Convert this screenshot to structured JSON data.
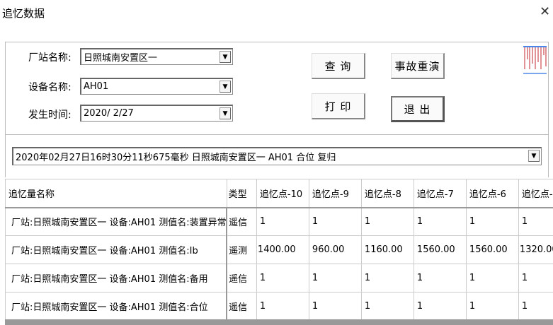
{
  "window": {
    "title": "追忆数据",
    "close_icon": "close-icon"
  },
  "form": {
    "station_label": "厂站名称:",
    "station_value": "日照城南安置区一",
    "device_label": "设备名称:",
    "device_value": "AH01",
    "time_label": "发生时间:",
    "time_value": "2020/ 2/27"
  },
  "buttons": {
    "query": "查 询",
    "replay": "事故重演",
    "print": "打 印",
    "exit": "退 出"
  },
  "event_select": {
    "value": "2020年02月27日16时30分11秒675毫秒 日照城南安置区一 AH01 合位 复归"
  },
  "table": {
    "headers": [
      "追忆量名称",
      "类型",
      "追忆点-10",
      "追忆点-9",
      "追忆点-8",
      "追忆点-7",
      "追忆点-6",
      "追忆点-"
    ],
    "rows": [
      {
        "name": "厂站:日照城南安置区一 设备:AH01 测值名:装置异常",
        "type": "遥信",
        "values": [
          "1",
          "1",
          "1",
          "1",
          "1",
          "1"
        ]
      },
      {
        "name": "厂站:日照城南安置区一 设备:AH01 测值名:Ib",
        "type": "遥测",
        "values": [
          "1400.00",
          "960.00",
          "1160.00",
          "1560.00",
          "1560.00",
          "1320.00"
        ]
      },
      {
        "name": "厂站:日照城南安置区一 设备:AH01 测值名:备用",
        "type": "遥信",
        "values": [
          "1",
          "1",
          "1",
          "1",
          "1",
          "1"
        ]
      },
      {
        "name": "厂站:日照城南安置区一 设备:AH01 测值名:合位",
        "type": "遥信",
        "values": [
          "1",
          "1",
          "1",
          "1",
          "1",
          "1"
        ]
      }
    ]
  },
  "colors": {
    "icon_red": "#c0262c",
    "icon_blue": "#4a86e8"
  }
}
